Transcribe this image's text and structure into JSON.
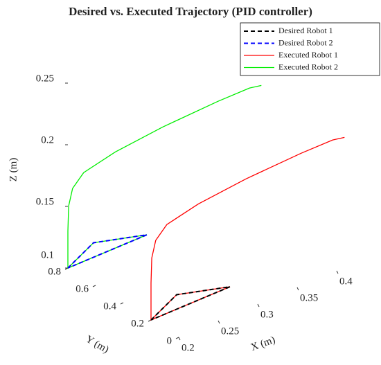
{
  "chart_data": {
    "type": "line3d",
    "title": "Desired vs. Executed Trajectory (PID controller)",
    "xlabel": "X (m)",
    "ylabel": "Y (m)",
    "zlabel": "Z (m)",
    "xlim": [
      0.2,
      0.4
    ],
    "ylim": [
      0,
      0.8
    ],
    "zlim": [
      0.1,
      0.25
    ],
    "xticks": [
      0.2,
      0.25,
      0.3,
      0.35,
      0.4
    ],
    "yticks": [
      0,
      0.2,
      0.4,
      0.6,
      0.8
    ],
    "zticks": [
      0.1,
      0.15,
      0.2,
      0.25
    ],
    "legend": "upper right",
    "series": [
      {
        "name": "Desired Robot 1",
        "color": "#000000",
        "dashed": true,
        "x": [
          0.2,
          0.25,
          0.3,
          0.2
        ],
        "y": [
          0.2,
          0.3,
          0.2,
          0.2
        ],
        "z": [
          0.1,
          0.1,
          0.1,
          0.1
        ]
      },
      {
        "name": "Desired Robot 2",
        "color": "#0000ff",
        "dashed": true,
        "x": [
          0.2,
          0.25,
          0.3,
          0.2
        ],
        "y": [
          0.8,
          0.9,
          0.8,
          0.8
        ],
        "z": [
          0.1,
          0.1,
          0.1,
          0.1
        ]
      },
      {
        "name": "Executed Robot 1",
        "color": "#ff0000",
        "dashed": false,
        "x": [
          0.2,
          0.25,
          0.3,
          0.2,
          0.2,
          0.201,
          0.206,
          0.22,
          0.26,
          0.32,
          0.39,
          0.43,
          0.445
        ],
        "y": [
          0.2,
          0.3,
          0.2,
          0.2,
          0.2,
          0.2,
          0.2,
          0.2,
          0.2,
          0.2,
          0.2,
          0.2,
          0.2
        ],
        "z": [
          0.1,
          0.1,
          0.1,
          0.1,
          0.13,
          0.15,
          0.163,
          0.172,
          0.178,
          0.182,
          0.184,
          0.184,
          0.182
        ]
      },
      {
        "name": "Executed Robot 2",
        "color": "#00ee00",
        "dashed": false,
        "x": [
          0.2,
          0.25,
          0.3,
          0.2,
          0.2,
          0.201,
          0.206,
          0.22,
          0.26,
          0.32,
          0.39,
          0.43,
          0.445
        ],
        "y": [
          0.8,
          0.9,
          0.8,
          0.8,
          0.8,
          0.8,
          0.8,
          0.8,
          0.8,
          0.8,
          0.8,
          0.8,
          0.8
        ],
        "z": [
          0.1,
          0.1,
          0.1,
          0.1,
          0.13,
          0.15,
          0.163,
          0.172,
          0.178,
          0.182,
          0.184,
          0.184,
          0.182
        ]
      }
    ]
  }
}
